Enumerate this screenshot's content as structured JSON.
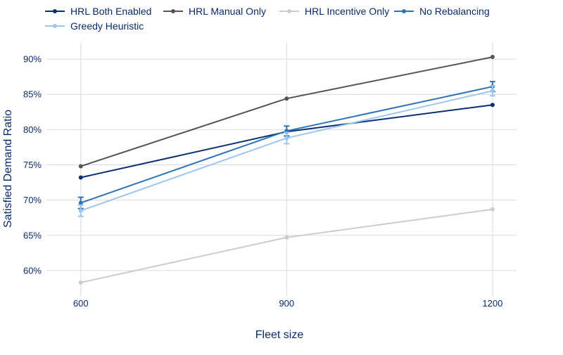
{
  "chart_data": {
    "type": "line",
    "title": "",
    "xlabel": "Fleet size",
    "ylabel": "Satisfied Demand Ratio",
    "x": [
      600,
      900,
      1200
    ],
    "x_tick_labels": [
      "600",
      "900",
      "1200"
    ],
    "y_ticks": [
      60,
      65,
      70,
      75,
      80,
      85,
      90
    ],
    "y_tick_labels": [
      "60%",
      "65%",
      "70%",
      "75%",
      "80%",
      "85%",
      "90%"
    ],
    "xlim": [
      550,
      1235
    ],
    "ylim": [
      56.3,
      92.4
    ],
    "grid": true,
    "legend_position": "top-left",
    "series": [
      {
        "name": "HRL Both Enabled",
        "color": "#0b2f73",
        "values": [
          73.2,
          79.7,
          83.5
        ],
        "error": [
          0,
          0,
          0
        ]
      },
      {
        "name": "HRL Manual Only",
        "color": "#555555",
        "values": [
          74.8,
          84.4,
          90.3
        ],
        "error": [
          0,
          0,
          0
        ]
      },
      {
        "name": "HRL Incentive Only",
        "color": "#cccccc",
        "values": [
          58.3,
          64.7,
          68.7
        ],
        "error": [
          0,
          0,
          0
        ]
      },
      {
        "name": "No Rebalancing",
        "color": "#2f72b6",
        "values": [
          69.6,
          79.8,
          86.1
        ],
        "error": [
          0.8,
          0.7,
          0.7
        ]
      },
      {
        "name": "Greedy Heuristic",
        "color": "#9dc6ef",
        "values": [
          68.5,
          78.8,
          85.5
        ],
        "error": [
          0.8,
          0.8,
          0.7
        ]
      }
    ]
  }
}
